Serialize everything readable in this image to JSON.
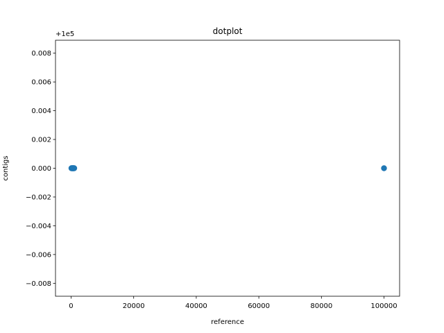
{
  "chart_data": {
    "type": "scatter",
    "title": "dotplot",
    "xlabel": "reference",
    "ylabel": "contigs",
    "y_offset_text": "+1e5",
    "xlim": [
      -4985,
      104985
    ],
    "ylim": [
      -0.0089,
      0.0089
    ],
    "x_ticks": [
      0,
      20000,
      40000,
      60000,
      80000,
      100000
    ],
    "x_tick_labels": [
      "0",
      "20000",
      "40000",
      "60000",
      "80000",
      "100000"
    ],
    "y_ticks": [
      0.008,
      0.006,
      0.004,
      0.002,
      0.0,
      -0.002,
      -0.004,
      -0.006,
      -0.008
    ],
    "y_tick_labels": [
      "0.008",
      "0.006",
      "0.004",
      "0.002",
      "0.000",
      "−0.002",
      "−0.004",
      "−0.006",
      "−0.008"
    ],
    "marker_color": "#1f77b4",
    "grid": false,
    "series": [
      {
        "x": [
          100,
          200,
          300,
          400,
          500,
          600,
          700,
          800,
          900,
          1000,
          100000
        ],
        "y": [
          0,
          0,
          0,
          0,
          0,
          0,
          0,
          0,
          0,
          0,
          0
        ]
      }
    ]
  }
}
